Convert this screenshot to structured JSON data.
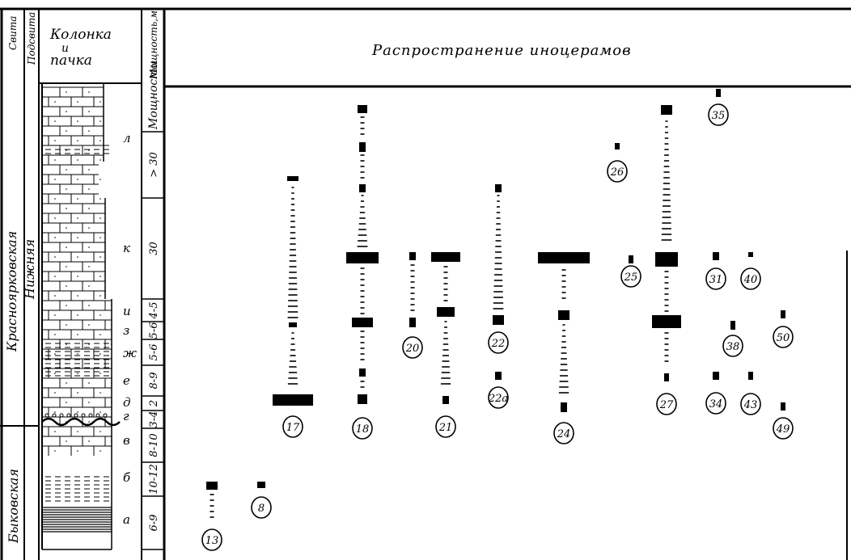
{
  "header": {
    "col_suite": "Свита",
    "col_subsuite": "Подсвита",
    "col_column_line1": "Колонка",
    "col_column_line2": "и",
    "col_column_line3": "пачка",
    "col_thickness": "Мощность,м",
    "distribution_title": "Распространение иноцерамов"
  },
  "suites": [
    {
      "name": "Красноярковская",
      "subsuite": "Нижняя"
    },
    {
      "name": "Быковская",
      "subsuite": ""
    }
  ],
  "thickness_header": "Мощности",
  "units": [
    {
      "letter": "л",
      "thickness": "> 30"
    },
    {
      "letter": "к",
      "thickness": "30"
    },
    {
      "letter": "и",
      "thickness": "4-5"
    },
    {
      "letter": "з",
      "thickness": "5-6"
    },
    {
      "letter": "ж",
      "thickness": "5-6"
    },
    {
      "letter": "е",
      "thickness": "8-9"
    },
    {
      "letter": "д",
      "thickness": "2"
    },
    {
      "letter": "г",
      "thickness": "3-4"
    },
    {
      "letter": "в",
      "thickness": "8-10"
    },
    {
      "letter": "б",
      "thickness": "10-12"
    },
    {
      "letter": "а",
      "thickness": "6-9"
    }
  ],
  "taxa": [
    "13",
    "8",
    "17",
    "18",
    "20",
    "21",
    "22",
    "22а",
    "24",
    "25",
    "26",
    "27",
    "31",
    "35",
    "34",
    "38",
    "40",
    "43",
    "50",
    "49"
  ]
}
